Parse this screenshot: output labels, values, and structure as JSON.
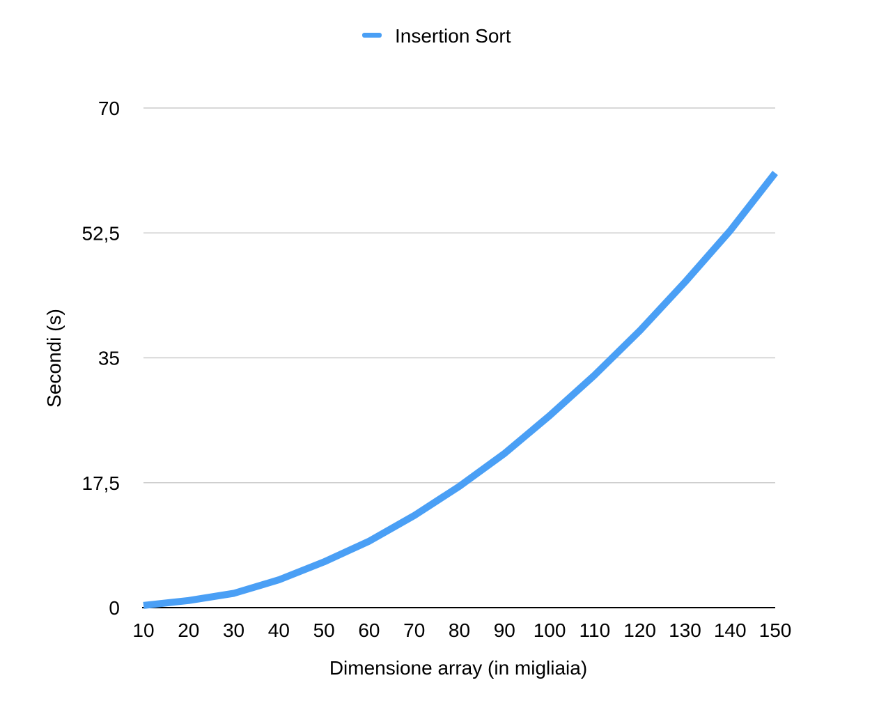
{
  "chart_data": {
    "type": "line",
    "xlabel": "Dimensione array (in migliaia)",
    "ylabel": "Secondi (s)",
    "categories": [
      "10",
      "20",
      "30",
      "40",
      "50",
      "60",
      "70",
      "80",
      "90",
      "100",
      "110",
      "120",
      "130",
      "140",
      "150"
    ],
    "y_ticks": [
      "0",
      "17,5",
      "35",
      "52,5",
      "70"
    ],
    "ylim": [
      0,
      70
    ],
    "grid": true,
    "legend_position": "top-center",
    "series": [
      {
        "name": "Insertion Sort",
        "color": "#4a9ff5",
        "values": [
          0.3,
          1.0,
          2.0,
          3.9,
          6.4,
          9.3,
          12.9,
          17.0,
          21.6,
          26.9,
          32.6,
          38.8,
          45.6,
          52.8,
          60.9
        ]
      }
    ]
  }
}
